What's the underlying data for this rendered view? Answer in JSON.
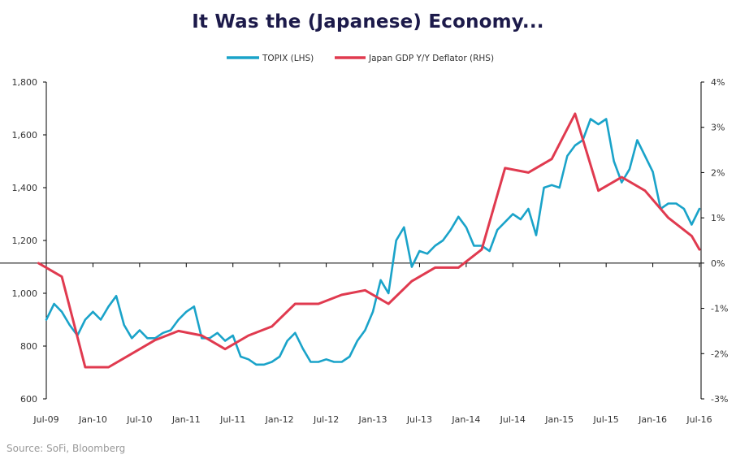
{
  "title": "It Was the (Japanese) Economy...",
  "source": "Source: SoFi, Bloomberg",
  "chart_data": {
    "type": "line",
    "title": "It Was the (Japanese) Economy...",
    "x_ticks": [
      "Jul-09",
      "Jan-10",
      "Jul-10",
      "Jan-11",
      "Jul-11",
      "Jan-12",
      "Jul-12",
      "Jan-13",
      "Jul-13",
      "Jan-14",
      "Jul-14",
      "Jan-15",
      "Jul-15",
      "Jan-16",
      "Jul-16"
    ],
    "left_axis": {
      "ticks": [
        600,
        800,
        1000,
        1200,
        1400,
        1600,
        1800
      ],
      "tick_labels": [
        "600",
        "800",
        "1,000",
        "1,200",
        "1,400",
        "1,600",
        "1,800"
      ],
      "ylim": [
        600,
        1800
      ]
    },
    "right_axis": {
      "ticks": [
        -3,
        -2,
        -1,
        0,
        1,
        2,
        3,
        4
      ],
      "tick_labels": [
        "-3%",
        "-2%",
        "-1%",
        "0%",
        "1%",
        "2%",
        "3%",
        "4%"
      ],
      "ylim": [
        -3,
        4
      ]
    },
    "legend": {
      "placement": "top-center"
    },
    "series": [
      {
        "name": "TOPIX (LHS)",
        "axis": "left",
        "color": "#1aa3c9",
        "x": [
          "Jul-09",
          "Aug-09",
          "Sep-09",
          "Oct-09",
          "Nov-09",
          "Dec-09",
          "Jan-10",
          "Feb-10",
          "Mar-10",
          "Apr-10",
          "May-10",
          "Jun-10",
          "Jul-10",
          "Aug-10",
          "Sep-10",
          "Oct-10",
          "Nov-10",
          "Dec-10",
          "Jan-11",
          "Feb-11",
          "Mar-11",
          "Apr-11",
          "May-11",
          "Jun-11",
          "Jul-11",
          "Aug-11",
          "Sep-11",
          "Oct-11",
          "Nov-11",
          "Dec-11",
          "Jan-12",
          "Feb-12",
          "Mar-12",
          "Apr-12",
          "May-12",
          "Jun-12",
          "Jul-12",
          "Aug-12",
          "Sep-12",
          "Oct-12",
          "Nov-12",
          "Dec-12",
          "Jan-13",
          "Feb-13",
          "Mar-13",
          "Apr-13",
          "May-13",
          "Jun-13",
          "Jul-13",
          "Aug-13",
          "Sep-13",
          "Oct-13",
          "Nov-13",
          "Dec-13",
          "Jan-14",
          "Feb-14",
          "Mar-14",
          "Apr-14",
          "May-14",
          "Jun-14",
          "Jul-14",
          "Aug-14",
          "Sep-14",
          "Oct-14",
          "Nov-14",
          "Dec-14",
          "Jan-15",
          "Feb-15",
          "Mar-15",
          "Apr-15",
          "May-15",
          "Jun-15",
          "Jul-15",
          "Aug-15",
          "Sep-15",
          "Oct-15",
          "Nov-15",
          "Dec-15",
          "Jan-16",
          "Feb-16",
          "Mar-16",
          "Apr-16",
          "May-16",
          "Jun-16",
          "Jul-16"
        ],
        "values": [
          900,
          960,
          930,
          880,
          840,
          900,
          930,
          900,
          950,
          990,
          880,
          830,
          860,
          830,
          830,
          850,
          860,
          900,
          930,
          950,
          830,
          830,
          850,
          820,
          840,
          760,
          750,
          730,
          730,
          740,
          760,
          820,
          850,
          790,
          740,
          740,
          750,
          740,
          740,
          760,
          820,
          860,
          930,
          1050,
          1000,
          1200,
          1250,
          1100,
          1160,
          1150,
          1180,
          1200,
          1240,
          1290,
          1250,
          1180,
          1180,
          1160,
          1240,
          1270,
          1300,
          1280,
          1320,
          1220,
          1400,
          1410,
          1400,
          1520,
          1560,
          1580,
          1660,
          1640,
          1660,
          1500,
          1420,
          1470,
          1580,
          1520,
          1460,
          1320,
          1340,
          1340,
          1320,
          1260,
          1320
        ]
      },
      {
        "name": "Japan GDP Y/Y Deflator (RHS)",
        "axis": "right",
        "color": "#e03a4f",
        "x": [
          "Jun-09",
          "Sep-09",
          "Dec-09",
          "Mar-10",
          "Jun-10",
          "Sep-10",
          "Dec-10",
          "Mar-11",
          "Jun-11",
          "Sep-11",
          "Dec-11",
          "Mar-12",
          "Jun-12",
          "Sep-12",
          "Dec-12",
          "Mar-13",
          "Jun-13",
          "Sep-13",
          "Dec-13",
          "Mar-14",
          "Jun-14",
          "Sep-14",
          "Dec-14",
          "Mar-15",
          "Jun-15",
          "Sep-15",
          "Dec-15",
          "Mar-16",
          "Jun-16",
          "Jul-16"
        ],
        "values": [
          0.0,
          -0.3,
          -2.3,
          -2.3,
          -2.0,
          -1.7,
          -1.5,
          -1.6,
          -1.9,
          -1.6,
          -1.4,
          -0.9,
          -0.9,
          -0.7,
          -0.6,
          -0.9,
          -0.4,
          -0.1,
          -0.1,
          0.3,
          2.1,
          2.0,
          2.3,
          3.3,
          1.6,
          1.9,
          1.6,
          1.0,
          0.6,
          0.3
        ]
      }
    ]
  }
}
